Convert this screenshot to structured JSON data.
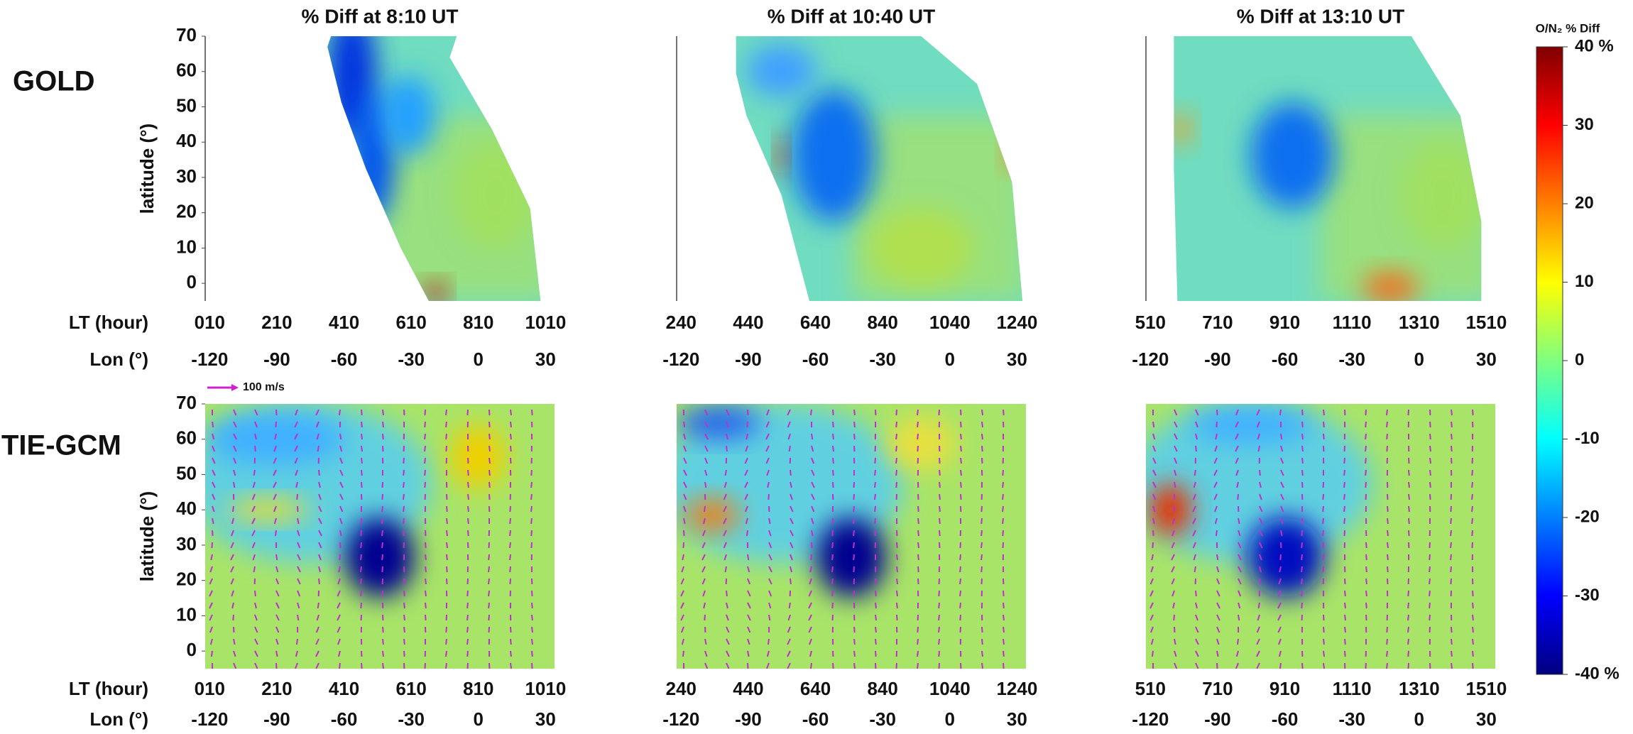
{
  "row_labels": [
    "GOLD",
    "TIE-GCM"
  ],
  "wind_scale_label": "100 m/s",
  "colorbar": {
    "title": "O/N₂ % Diff",
    "lim": [
      -40,
      40
    ],
    "ticks": [
      {
        "value": 40,
        "label": "40 %"
      },
      30,
      20,
      10,
      0,
      -10,
      -20,
      -30,
      {
        "value": -40,
        "label": "-40 %"
      }
    ]
  },
  "chart_data": [
    {
      "type": "heatmap",
      "title": "% Diff at 8:10 UT",
      "ylabel": "latitude (°)",
      "ylim": [
        -5,
        70
      ],
      "yticks": [
        0,
        10,
        20,
        30,
        40,
        50,
        60,
        70
      ],
      "x2label": "LT (hour)",
      "x2ticks": [
        {
          "value": -120,
          "label": "010"
        },
        {
          "value": -90,
          "label": "210"
        },
        {
          "value": -60,
          "label": "410"
        },
        {
          "value": -30,
          "label": "610"
        },
        {
          "value": 0,
          "label": "810"
        },
        {
          "value": 30,
          "label": "1010"
        }
      ],
      "xlabel": "Lon (°)",
      "xlim": [
        -122,
        34
      ],
      "xticks": [
        -120,
        -90,
        -60,
        -30,
        0,
        30
      ]
    },
    {
      "type": "heatmap",
      "title": "% Diff at 10:40 UT",
      "ylim": [
        -5,
        70
      ],
      "x2ticks": [
        {
          "value": -120,
          "label": "240"
        },
        {
          "value": -90,
          "label": "440"
        },
        {
          "value": -60,
          "label": "640"
        },
        {
          "value": -30,
          "label": "840"
        },
        {
          "value": 0,
          "label": "1040"
        },
        {
          "value": 30,
          "label": "1240"
        }
      ],
      "xlim": [
        -122,
        34
      ],
      "xticks": [
        -120,
        -90,
        -60,
        -30,
        0,
        30
      ]
    },
    {
      "type": "heatmap",
      "title": "% Diff at 13:10 UT",
      "ylim": [
        -5,
        70
      ],
      "x2ticks": [
        {
          "value": -120,
          "label": "510"
        },
        {
          "value": -90,
          "label": "710"
        },
        {
          "value": -60,
          "label": "910"
        },
        {
          "value": -30,
          "label": "1110"
        },
        {
          "value": 0,
          "label": "1310"
        },
        {
          "value": 30,
          "label": "1510"
        }
      ],
      "xlim": [
        -122,
        34
      ],
      "xticks": [
        -120,
        -90,
        -60,
        -30,
        0,
        30
      ]
    },
    {
      "type": "heatmap",
      "ylabel": "latitude (°)",
      "ylim": [
        -5,
        70
      ],
      "yticks": [
        0,
        10,
        20,
        30,
        40,
        50,
        60,
        70
      ],
      "x2label": "LT (hour)",
      "x2ticks": [
        {
          "value": -120,
          "label": "010"
        },
        {
          "value": -90,
          "label": "210"
        },
        {
          "value": -60,
          "label": "410"
        },
        {
          "value": -30,
          "label": "610"
        },
        {
          "value": 0,
          "label": "810"
        },
        {
          "value": 30,
          "label": "1010"
        }
      ],
      "xlabel": "Lon (°)",
      "xlim": [
        -122,
        34
      ],
      "xticks": [
        -120,
        -90,
        -60,
        -30,
        0,
        30
      ]
    },
    {
      "type": "heatmap",
      "ylim": [
        -5,
        70
      ],
      "x2ticks": [
        {
          "value": -120,
          "label": "240"
        },
        {
          "value": -90,
          "label": "440"
        },
        {
          "value": -60,
          "label": "640"
        },
        {
          "value": -30,
          "label": "840"
        },
        {
          "value": 0,
          "label": "1040"
        },
        {
          "value": 30,
          "label": "1240"
        }
      ],
      "xlim": [
        -122,
        34
      ],
      "xticks": [
        -120,
        -90,
        -60,
        -30,
        0,
        30
      ]
    },
    {
      "type": "heatmap",
      "ylim": [
        -5,
        70
      ],
      "x2ticks": [
        {
          "value": -120,
          "label": "510"
        },
        {
          "value": -90,
          "label": "710"
        },
        {
          "value": -60,
          "label": "910"
        },
        {
          "value": -30,
          "label": "1110"
        },
        {
          "value": 0,
          "label": "1310"
        },
        {
          "value": 30,
          "label": "1510"
        }
      ],
      "xlim": [
        -122,
        34
      ],
      "xticks": [
        -120,
        -90,
        -60,
        -30,
        0,
        30
      ]
    }
  ]
}
